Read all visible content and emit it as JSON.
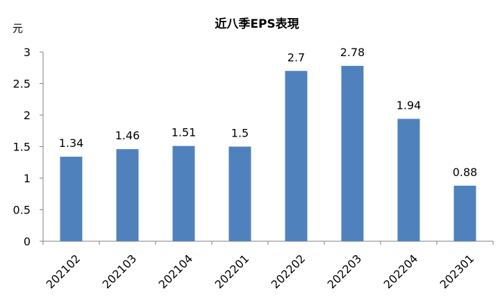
{
  "chart_data": {
    "type": "bar",
    "title": "近八季EPS表現",
    "ylabel": "元",
    "xlabel": "",
    "categories": [
      "202102",
      "202103",
      "202104",
      "202201",
      "202202",
      "202203",
      "202204",
      "202301"
    ],
    "values": [
      1.34,
      1.46,
      1.51,
      1.5,
      2.7,
      2.78,
      1.94,
      0.88
    ],
    "data_labels": [
      "1.34",
      "1.46",
      "1.51",
      "1.5",
      "2.7",
      "2.78",
      "1.94",
      "0.88"
    ],
    "ylim": [
      0,
      3
    ],
    "yticks": [
      0,
      0.5,
      1,
      1.5,
      2,
      2.5,
      3
    ],
    "ytick_labels": [
      "0",
      "0.5",
      "1",
      "1.5",
      "2",
      "2.5",
      "3"
    ],
    "grid": false,
    "legend": "none",
    "bar_color": "#4f81bd",
    "axis_color": "#7f7f7f"
  }
}
